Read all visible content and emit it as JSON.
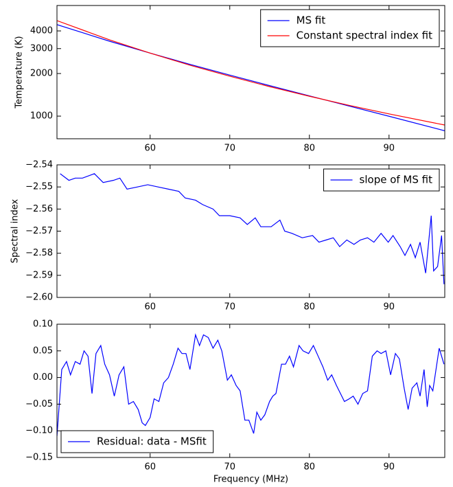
{
  "chart_data": [
    {
      "type": "line",
      "ylabel": "Temperature (K)",
      "log_y": true,
      "legend": "upper right",
      "x": [
        48.3,
        55,
        60,
        65,
        70,
        75,
        80,
        85,
        90,
        97
      ],
      "series": [
        {
          "name": "MS fit",
          "color": "#0000ff",
          "values": [
            4432,
            3369,
            2787,
            2322,
            1950,
            1643,
            1390,
            1177,
            998,
            788
          ]
        },
        {
          "name": "Constant spectral index fit",
          "color": "#ff0000",
          "values": [
            4730,
            3445,
            2787,
            2290,
            1914,
            1616,
            1382,
            1191,
            1037,
            865
          ]
        }
      ],
      "xlim": [
        48.3,
        97
      ],
      "xticks": [
        60,
        70,
        80,
        90
      ],
      "ylim": [
        692,
        6050
      ],
      "yticks": [
        1000,
        2000,
        3000,
        4000
      ]
    },
    {
      "type": "line",
      "ylabel": "Spectral index",
      "legend": "upper right",
      "x": [
        48.7,
        49.8,
        50.6,
        51.5,
        53.0,
        54.1,
        55.4,
        56.2,
        57.1,
        58.4,
        59.7,
        61.0,
        62.3,
        63.6,
        64.4,
        65.7,
        66.6,
        67.9,
        68.7,
        70.0,
        71.3,
        72.2,
        73.2,
        73.9,
        75.2,
        76.3,
        76.9,
        77.8,
        79.1,
        80.4,
        81.2,
        82.1,
        83.0,
        83.8,
        84.7,
        85.6,
        86.4,
        87.3,
        88.1,
        89.0,
        89.9,
        90.5,
        91.4,
        92.0,
        92.7,
        93.3,
        93.9,
        94.6,
        95.3,
        95.6,
        96.1,
        96.6,
        96.9
      ],
      "series": [
        {
          "name": "slope of MS fit",
          "color": "#0000ff",
          "values": [
            -2.544,
            -2.547,
            -2.546,
            -2.546,
            -2.544,
            -2.548,
            -2.547,
            -2.546,
            -2.551,
            -2.55,
            -2.549,
            -2.55,
            -2.551,
            -2.552,
            -2.555,
            -2.556,
            -2.558,
            -2.56,
            -2.563,
            -2.563,
            -2.564,
            -2.567,
            -2.564,
            -2.568,
            -2.568,
            -2.565,
            -2.57,
            -2.571,
            -2.573,
            -2.572,
            -2.575,
            -2.574,
            -2.573,
            -2.577,
            -2.574,
            -2.576,
            -2.574,
            -2.573,
            -2.575,
            -2.571,
            -2.575,
            -2.572,
            -2.577,
            -2.581,
            -2.576,
            -2.582,
            -2.575,
            -2.589,
            -2.563,
            -2.588,
            -2.586,
            -2.572,
            -2.594
          ]
        }
      ],
      "xlim": [
        48.3,
        97
      ],
      "xticks": [
        60,
        70,
        80,
        90
      ],
      "ylim": [
        -2.6,
        -2.54
      ],
      "yticks": [
        {
          "value": -2.6,
          "label": "−2.60"
        },
        {
          "value": -2.59,
          "label": "−2.59"
        },
        {
          "value": -2.58,
          "label": "−2.58"
        },
        {
          "value": -2.57,
          "label": "−2.57"
        },
        {
          "value": -2.56,
          "label": "−2.56"
        },
        {
          "value": -2.55,
          "label": "−2.55"
        },
        {
          "value": -2.54,
          "label": "−2.54"
        }
      ]
    },
    {
      "type": "line",
      "xlabel": "Frequency (MHz)",
      "legend": "lower left",
      "x": [
        48.3,
        48.9,
        49.5,
        50.0,
        50.6,
        51.2,
        51.7,
        52.2,
        52.7,
        53.2,
        53.8,
        54.3,
        54.9,
        55.5,
        56.1,
        56.7,
        57.3,
        57.9,
        58.5,
        59.0,
        59.4,
        60.0,
        60.5,
        61.1,
        61.7,
        62.3,
        62.9,
        63.5,
        64.0,
        64.5,
        65.0,
        65.7,
        66.2,
        66.7,
        67.3,
        67.9,
        68.5,
        69.0,
        69.7,
        70.2,
        70.8,
        71.3,
        71.9,
        72.4,
        73.0,
        73.4,
        73.9,
        74.4,
        75.0,
        75.4,
        75.8,
        76.5,
        77.0,
        77.5,
        78.0,
        78.7,
        79.2,
        79.9,
        80.5,
        81.1,
        81.7,
        82.3,
        82.8,
        83.4,
        83.9,
        84.4,
        85.0,
        85.5,
        86.1,
        86.7,
        87.3,
        87.9,
        88.5,
        89.0,
        89.6,
        90.2,
        90.8,
        91.3,
        91.9,
        92.4,
        92.9,
        93.5,
        93.9,
        94.4,
        94.8,
        95.1,
        95.5,
        96.0,
        96.3,
        96.9
      ],
      "series": [
        {
          "name": "Residual: data - MSfit",
          "color": "#0000ff",
          "values": [
            -0.11,
            0.015,
            0.03,
            0.005,
            0.03,
            0.025,
            0.05,
            0.04,
            -0.03,
            0.045,
            0.06,
            0.025,
            0.005,
            -0.035,
            0.005,
            0.02,
            -0.05,
            -0.045,
            -0.06,
            -0.085,
            -0.09,
            -0.075,
            -0.04,
            -0.045,
            -0.01,
            0,
            0.025,
            0.055,
            0.045,
            0.045,
            0.015,
            0.08,
            0.06,
            0.08,
            0.075,
            0.055,
            0.07,
            0.05,
            -0.005,
            0.005,
            -0.015,
            -0.025,
            -0.08,
            -0.08,
            -0.105,
            -0.065,
            -0.08,
            -0.07,
            -0.045,
            -0.035,
            -0.03,
            0.025,
            0.025,
            0.04,
            0.02,
            0.06,
            0.05,
            0.045,
            0.06,
            0.04,
            0.02,
            -0.005,
            0.005,
            -0.015,
            -0.03,
            -0.045,
            -0.04,
            -0.035,
            -0.05,
            -0.03,
            -0.025,
            0.04,
            0.05,
            0.045,
            0.05,
            0.005,
            0.045,
            0.035,
            -0.02,
            -0.06,
            -0.02,
            -0.01,
            -0.035,
            0.015,
            -0.055,
            -0.015,
            -0.025,
            0.025,
            0.055,
            0.025
          ]
        }
      ],
      "xlim": [
        48.3,
        97
      ],
      "xticks": [
        60,
        70,
        80,
        90
      ],
      "ylim": [
        -0.15,
        0.1
      ],
      "yticks": [
        {
          "value": -0.15,
          "label": "−0.15"
        },
        {
          "value": -0.1,
          "label": "−0.10"
        },
        {
          "value": -0.05,
          "label": "−0.05"
        },
        {
          "value": 0,
          "label": "0.00"
        },
        {
          "value": 0.05,
          "label": "0.05"
        },
        {
          "value": 0.1,
          "label": "0.10"
        }
      ]
    }
  ]
}
